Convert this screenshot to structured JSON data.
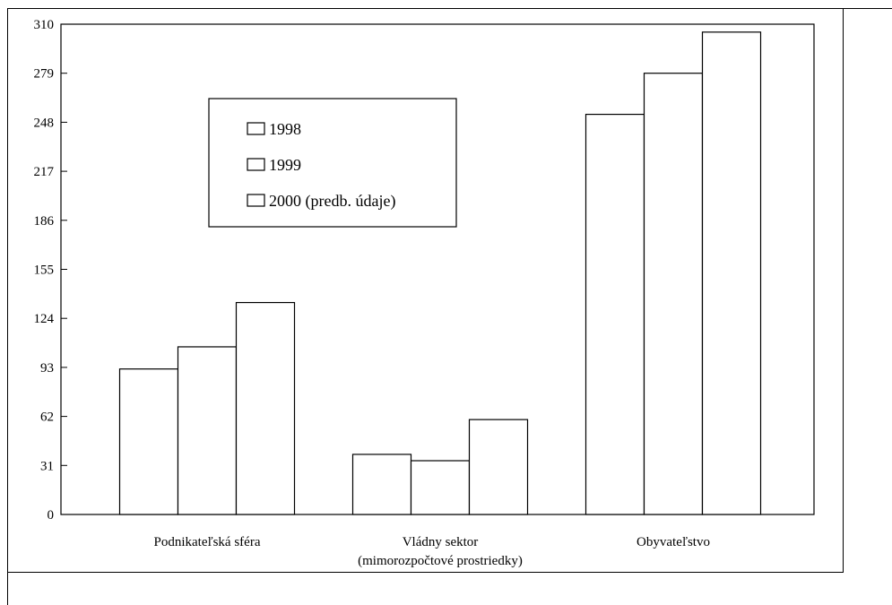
{
  "chart_data": {
    "type": "bar",
    "title": "",
    "xlabel": "",
    "ylabel": "",
    "ylim": [
      0,
      310
    ],
    "yticks": [
      0,
      31,
      62,
      93,
      124,
      155,
      186,
      217,
      248,
      279,
      310
    ],
    "categories": [
      [
        "Podnikateľská sféra"
      ],
      [
        "Vládny sektor",
        "(mimorozpočtové prostriedky)"
      ],
      [
        "Obyvateľstvo"
      ]
    ],
    "series": [
      {
        "name": "1998",
        "values": [
          92,
          38,
          253
        ],
        "color": "#ffffff"
      },
      {
        "name": "1999",
        "values": [
          106,
          34,
          279
        ],
        "color": "#ffffff"
      },
      {
        "name": "2000 (predb. údaje)",
        "values": [
          134,
          60,
          305
        ],
        "color": "#ffffff"
      }
    ],
    "legend_position": "upper-left inside plot",
    "grid": false
  }
}
